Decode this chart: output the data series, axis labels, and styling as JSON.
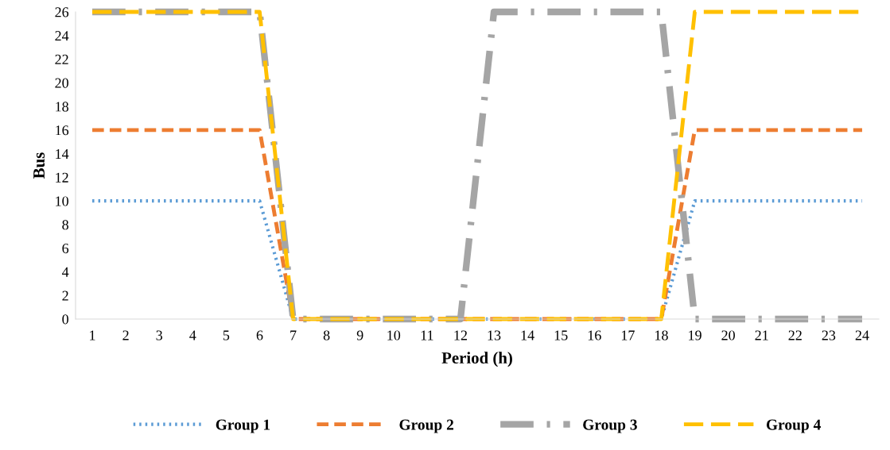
{
  "chart_data": {
    "type": "line",
    "xlabel": "Period (h)",
    "ylabel": "Bus",
    "categories": [
      "1",
      "2",
      "3",
      "4",
      "5",
      "6",
      "7",
      "8",
      "9",
      "10",
      "11",
      "12",
      "13",
      "14",
      "15",
      "16",
      "17",
      "18",
      "19",
      "20",
      "21",
      "22",
      "23",
      "24"
    ],
    "series": [
      {
        "name": "Group 1",
        "color": "#5b9bd5",
        "line_style": "dotted",
        "values": [
          10,
          10,
          10,
          10,
          10,
          10,
          0,
          0,
          0,
          0,
          0,
          0,
          0,
          0,
          0,
          0,
          0,
          0,
          10,
          10,
          10,
          10,
          10,
          10
        ]
      },
      {
        "name": "Group 2",
        "color": "#ed7d31",
        "line_style": "dashed",
        "values": [
          16,
          16,
          16,
          16,
          16,
          16,
          0,
          0,
          0,
          0,
          0,
          0,
          0,
          0,
          0,
          0,
          0,
          0,
          16,
          16,
          16,
          16,
          16,
          16
        ]
      },
      {
        "name": "Group 3",
        "color": "#a5a5a5",
        "line_style": "dashdot",
        "values": [
          26,
          26,
          26,
          26,
          26,
          26,
          0,
          0,
          0,
          0,
          0,
          0,
          26,
          26,
          26,
          26,
          26,
          26,
          0,
          0,
          0,
          0,
          0,
          0
        ]
      },
      {
        "name": "Group 4",
        "color": "#ffc000",
        "line_style": "longdash",
        "values": [
          26,
          26,
          26,
          26,
          26,
          26,
          0,
          0,
          0,
          0,
          0,
          0,
          0,
          0,
          0,
          0,
          0,
          0,
          26,
          26,
          26,
          26,
          26,
          26
        ]
      }
    ],
    "ylim": [
      0,
      26
    ],
    "yticks": [
      0,
      2,
      4,
      6,
      8,
      10,
      12,
      14,
      16,
      18,
      20,
      22,
      24,
      26
    ],
    "grid": false,
    "legend": "bottom",
    "marker": "none"
  }
}
